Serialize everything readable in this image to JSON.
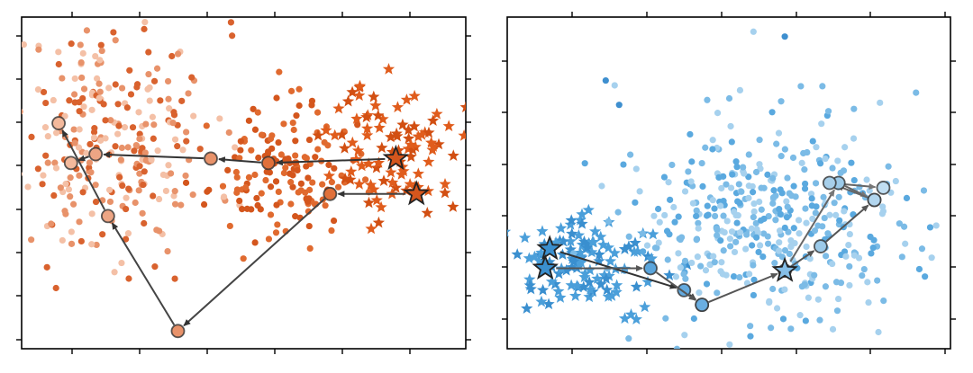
{
  "chart_data": [
    {
      "type": "scatter",
      "title": "",
      "xlabel": "",
      "ylabel": "",
      "xlim": [
        -4.2,
        6.6
      ],
      "ylim": [
        -4.1,
        3.4
      ],
      "grid": false,
      "legend": "none",
      "tick_labels": "none",
      "series": [
        {
          "marker": "circle",
          "colors": [
            "#f4c0a6",
            "#e8926a",
            "#d9622e"
          ],
          "cloud": {
            "center": [
              -2.0,
              0.6
            ],
            "spread": [
              1.25,
              1.35
            ],
            "count": 280,
            "seed": 11
          }
        },
        {
          "marker": "circle",
          "colors": [
            "#e06a2f",
            "#d4561d"
          ],
          "cloud": {
            "center": [
              2.1,
              -0.15
            ],
            "spread": [
              0.85,
              0.75
            ],
            "count": 150,
            "seed": 23
          }
        },
        {
          "marker": "star",
          "colors": [
            "#e05c1c",
            "#d24f12"
          ],
          "cloud": {
            "center": [
              4.9,
              0.4
            ],
            "spread": [
              0.8,
              0.75
            ],
            "count": 95,
            "seed": 37
          }
        }
      ],
      "trajectories": [
        {
          "points": [
            [
              5.4,
              -0.6
            ],
            [
              3.3,
              -0.6
            ],
            [
              -0.4,
              -3.7
            ],
            [
              -2.1,
              -1.1
            ],
            [
              -3.3,
              1.0
            ]
          ],
          "shades": [
            "#d4561d",
            "#e0703a",
            "#e8926a",
            "#eda584",
            "#f3b99c"
          ],
          "line_color": "#444444"
        },
        {
          "points": [
            [
              4.9,
              0.2
            ],
            [
              1.8,
              0.1
            ],
            [
              0.4,
              0.2
            ],
            [
              -2.4,
              0.3
            ],
            [
              -3.0,
              0.1
            ]
          ],
          "shades": [
            "#d4561d",
            "#e0703a",
            "#e8926a",
            "#eda584",
            "#f3b99c"
          ],
          "line_color": "#333333"
        }
      ]
    },
    {
      "type": "scatter",
      "title": "",
      "xlabel": "",
      "ylabel": "",
      "xlim": [
        -2.2,
        7.7
      ],
      "ylim": [
        -3.6,
        3.2
      ],
      "grid": false,
      "legend": "none",
      "tick_labels": "none",
      "series": [
        {
          "marker": "star",
          "colors": [
            "#3a8fcf",
            "#4b9fda"
          ],
          "cloud": {
            "center": [
              -0.4,
              -1.85
            ],
            "spread": [
              0.85,
              0.45
            ],
            "count": 120,
            "seed": 41
          }
        },
        {
          "marker": "circle",
          "colors": [
            "#5aa9df",
            "#7bbbe6",
            "#a6d1ee"
          ],
          "cloud": {
            "center": [
              3.8,
              -1.1
            ],
            "spread": [
              1.7,
              1.05
            ],
            "count": 420,
            "seed": 53
          }
        },
        {
          "marker": "circle",
          "colors": [
            "#3e8fcf",
            "#a6d1ee"
          ],
          "points": [
            [
              3.3,
              2.9
            ],
            [
              4.0,
              2.8
            ],
            [
              0.0,
              1.9
            ],
            [
              0.3,
              1.4
            ],
            [
              3.0,
              1.7
            ],
            [
              0.2,
              1.8
            ]
          ]
        }
      ],
      "trajectories": [
        {
          "points": [
            [
              -1.25,
              -1.55
            ],
            [
              1.75,
              -2.4
            ],
            [
              2.15,
              -2.7
            ]
          ],
          "shades": [
            "#3a8fcf",
            "#63aadf",
            "#78b6e4"
          ],
          "line_color": "#333333"
        },
        {
          "points": [
            [
              -1.35,
              -1.95
            ],
            [
              1.0,
              -1.95
            ],
            [
              2.15,
              -2.7
            ],
            [
              4.0,
              -2.0
            ],
            [
              4.8,
              -1.5
            ],
            [
              6.0,
              -0.55
            ]
          ],
          "shades": [
            "#3a8fcf",
            "#5aa5dc",
            "#6aaee1",
            "#85bee7",
            "#9ccae9",
            "#b2d6ef"
          ],
          "line_color": "#555555"
        },
        {
          "points": [
            [
              4.0,
              -2.0
            ],
            [
              5.2,
              -0.2
            ],
            [
              6.0,
              -0.55
            ],
            [
              5.0,
              -0.2
            ],
            [
              6.2,
              -0.3
            ]
          ],
          "shades": [
            "#85bee7",
            "#9ccae9",
            "#b2d6ef",
            "#a7cfea",
            "#c0def2"
          ],
          "line_color": "#666666"
        }
      ]
    }
  ]
}
